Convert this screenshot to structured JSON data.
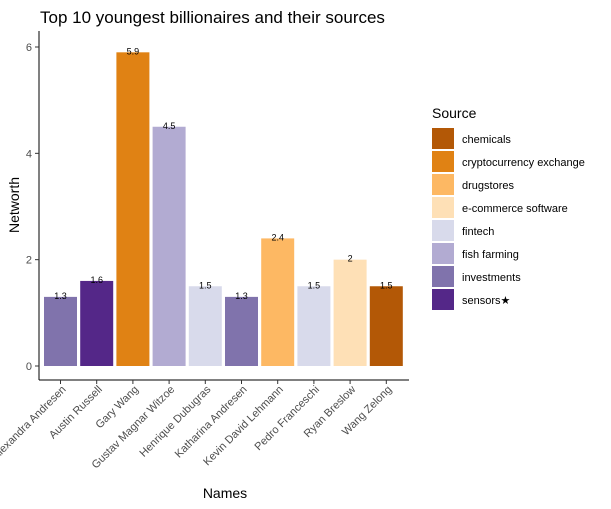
{
  "chart_data": {
    "type": "bar",
    "title": "Top 10 youngest billionaires and their sources",
    "xlabel": "Names",
    "ylabel": "Networth",
    "ylim": [
      0,
      6.2
    ],
    "yticks": [
      0,
      2,
      4,
      6
    ],
    "categories": [
      "Alexandra Andresen",
      "Austin Russell",
      "Gary Wang",
      "Gustav Magnar Witzoe",
      "Henrique Dubugras",
      "Katharina Andresen",
      "Kevin David Lehmann",
      "Pedro Franceschi",
      "Ryan Breslow",
      "Wang Zelong"
    ],
    "values": [
      1.3,
      1.6,
      5.9,
      4.5,
      1.5,
      1.3,
      2.4,
      1.5,
      2,
      1.5
    ],
    "value_labels": [
      "1.3",
      "1.6",
      "5.9",
      "4.5",
      "1.5",
      "1.3",
      "2.4",
      "1.5",
      "2",
      "1.5"
    ],
    "sources": [
      "investments",
      "sensors★",
      "cryptocurrency exchange",
      "fish farming",
      "fintech",
      "investments",
      "drugstores",
      "fintech",
      "e-commerce software",
      "chemicals"
    ],
    "legend": {
      "title": "Source",
      "position": "right",
      "entries": [
        {
          "label": "chemicals",
          "color": "#b35806"
        },
        {
          "label": "cryptocurrency exchange",
          "color": "#e08214"
        },
        {
          "label": "drugstores",
          "color": "#fdb863"
        },
        {
          "label": "e-commerce software",
          "color": "#fee0b6"
        },
        {
          "label": "fintech",
          "color": "#d8daeb"
        },
        {
          "label": "fish farming",
          "color": "#b2abd2"
        },
        {
          "label": "investments",
          "color": "#8073ac"
        },
        {
          "label": "sensors★",
          "color": "#542788"
        }
      ]
    },
    "grid": false
  }
}
